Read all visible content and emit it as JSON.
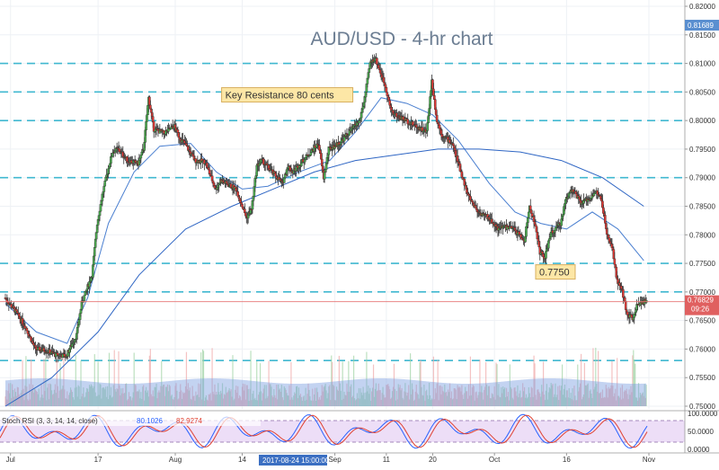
{
  "chart_data": {
    "type": "candlestick",
    "title": "AUD/USD - 4-hr chart",
    "instrument": "AUD/USD",
    "timeframe": "4-hr",
    "ylim": [
      0.75,
      0.82
    ],
    "y_ticks": [
      "0.82000",
      "0.81500",
      "0.81000",
      "0.80500",
      "0.80000",
      "0.79500",
      "0.79000",
      "0.78500",
      "0.78000",
      "0.77500",
      "0.77000",
      "0.76500",
      "0.76000",
      "0.75500",
      "0.75000"
    ],
    "x_ticks": [
      "Jul",
      "17",
      "Aug",
      "14",
      "Sep",
      "11",
      "20",
      "Oct",
      "16",
      "Nov"
    ],
    "crosshair_date": "2017-08-24 15:00:00",
    "current_price": "0.76829",
    "countdown": "09:26",
    "top_price_label": "0.81689",
    "horizontal_levels": [
      0.81,
      0.805,
      0.8,
      0.79,
      0.775,
      0.77,
      0.758
    ],
    "current_price_value": 0.7683,
    "annotations": [
      {
        "text": "Key Resistance 80 cents",
        "x": "2017-08-10",
        "y": 0.8045
      },
      {
        "text": "0.7750",
        "x": "2017-10-10",
        "y": 0.7735
      }
    ],
    "price_path": [
      [
        "2017-06-29",
        0.769
      ],
      [
        "2017-07-01",
        0.7668
      ],
      [
        "2017-07-03",
        0.764
      ],
      [
        "2017-07-05",
        0.76
      ],
      [
        "2017-07-07",
        0.7598
      ],
      [
        "2017-07-09",
        0.759
      ],
      [
        "2017-07-11",
        0.7588
      ],
      [
        "2017-07-13",
        0.7625
      ],
      [
        "2017-07-14",
        0.768
      ],
      [
        "2017-07-16",
        0.773
      ],
      [
        "2017-07-17",
        0.782
      ],
      [
        "2017-07-18",
        0.787
      ],
      [
        "2017-07-19",
        0.791
      ],
      [
        "2017-07-20",
        0.7945
      ],
      [
        "2017-07-21",
        0.795
      ],
      [
        "2017-07-23",
        0.793
      ],
      [
        "2017-07-25",
        0.7925
      ],
      [
        "2017-07-26",
        0.795
      ],
      [
        "2017-07-27",
        0.804
      ],
      [
        "2017-07-28",
        0.7985
      ],
      [
        "2017-07-30",
        0.7978
      ],
      [
        "2017-08-01",
        0.799
      ],
      [
        "2017-08-02",
        0.797
      ],
      [
        "2017-08-03",
        0.796
      ],
      [
        "2017-08-05",
        0.793
      ],
      [
        "2017-08-07",
        0.7928
      ],
      [
        "2017-08-09",
        0.788
      ],
      [
        "2017-08-10",
        0.7895
      ],
      [
        "2017-08-11",
        0.789
      ],
      [
        "2017-08-13",
        0.788
      ],
      [
        "2017-08-15",
        0.783
      ],
      [
        "2017-08-16",
        0.7845
      ],
      [
        "2017-08-17",
        0.792
      ],
      [
        "2017-08-18",
        0.793
      ],
      [
        "2017-08-20",
        0.791
      ],
      [
        "2017-08-22",
        0.789
      ],
      [
        "2017-08-23",
        0.792
      ],
      [
        "2017-08-24",
        0.791
      ],
      [
        "2017-08-25",
        0.792
      ],
      [
        "2017-08-27",
        0.794
      ],
      [
        "2017-08-29",
        0.796
      ],
      [
        "2017-08-30",
        0.79
      ],
      [
        "2017-08-31",
        0.795
      ],
      [
        "2017-09-02",
        0.796
      ],
      [
        "2017-09-04",
        0.798
      ],
      [
        "2017-09-06",
        0.8
      ],
      [
        "2017-09-07",
        0.804
      ],
      [
        "2017-09-08",
        0.81
      ],
      [
        "2017-09-09",
        0.811
      ],
      [
        "2017-09-11",
        0.806
      ],
      [
        "2017-09-12",
        0.802
      ],
      [
        "2017-09-13",
        0.801
      ],
      [
        "2017-09-15",
        0.8
      ],
      [
        "2017-09-17",
        0.799
      ],
      [
        "2017-09-18",
        0.7985
      ],
      [
        "2017-09-19",
        0.798
      ],
      [
        "2017-09-20",
        0.807
      ],
      [
        "2017-09-21",
        0.8
      ],
      [
        "2017-09-22",
        0.7975
      ],
      [
        "2017-09-24",
        0.796
      ],
      [
        "2017-09-26",
        0.79
      ],
      [
        "2017-09-27",
        0.787
      ],
      [
        "2017-09-29",
        0.784
      ],
      [
        "2017-10-01",
        0.783
      ],
      [
        "2017-10-03",
        0.781
      ],
      [
        "2017-10-04",
        0.7815
      ],
      [
        "2017-10-06",
        0.781
      ],
      [
        "2017-10-08",
        0.779
      ],
      [
        "2017-10-09",
        0.785
      ],
      [
        "2017-10-10",
        0.782
      ],
      [
        "2017-10-11",
        0.777
      ],
      [
        "2017-10-12",
        0.776
      ],
      [
        "2017-10-13",
        0.78
      ],
      [
        "2017-10-15",
        0.782
      ],
      [
        "2017-10-16",
        0.786
      ],
      [
        "2017-10-17",
        0.788
      ],
      [
        "2017-10-18",
        0.787
      ],
      [
        "2017-10-19",
        0.7855
      ],
      [
        "2017-10-20",
        0.786
      ],
      [
        "2017-10-22",
        0.7875
      ],
      [
        "2017-10-23",
        0.786
      ],
      [
        "2017-10-24",
        0.78
      ],
      [
        "2017-10-25",
        0.778
      ],
      [
        "2017-10-26",
        0.772
      ],
      [
        "2017-10-27",
        0.77
      ],
      [
        "2017-10-28",
        0.766
      ],
      [
        "2017-10-29",
        0.7655
      ],
      [
        "2017-10-30",
        0.768
      ],
      [
        "2017-10-31",
        0.7683
      ]
    ],
    "moving_averages": [
      {
        "name": "short MA",
        "color": "#4a7fd0",
        "values": [
          [
            "2017-06-29",
            0.768
          ],
          [
            "2017-07-05",
            0.763
          ],
          [
            "2017-07-11",
            0.761
          ],
          [
            "2017-07-15",
            0.769
          ],
          [
            "2017-07-19",
            0.782
          ],
          [
            "2017-07-24",
            0.791
          ],
          [
            "2017-07-29",
            0.7955
          ],
          [
            "2017-08-04",
            0.796
          ],
          [
            "2017-08-09",
            0.791
          ],
          [
            "2017-08-14",
            0.788
          ],
          [
            "2017-08-19",
            0.7885
          ],
          [
            "2017-08-25",
            0.791
          ],
          [
            "2017-08-31",
            0.793
          ],
          [
            "2017-09-05",
            0.798
          ],
          [
            "2017-09-10",
            0.804
          ],
          [
            "2017-09-15",
            0.803
          ],
          [
            "2017-09-20",
            0.801
          ],
          [
            "2017-09-25",
            0.7965
          ],
          [
            "2017-10-01",
            0.789
          ],
          [
            "2017-10-06",
            0.784
          ],
          [
            "2017-10-11",
            0.782
          ],
          [
            "2017-10-16",
            0.781
          ],
          [
            "2017-10-21",
            0.784
          ],
          [
            "2017-10-26",
            0.781
          ],
          [
            "2017-10-31",
            0.7755
          ]
        ]
      },
      {
        "name": "long MA",
        "color": "#2f66c4",
        "values": [
          [
            "2017-06-29",
            0.75
          ],
          [
            "2017-07-08",
            0.755
          ],
          [
            "2017-07-17",
            0.763
          ],
          [
            "2017-07-25",
            0.773
          ],
          [
            "2017-08-03",
            0.781
          ],
          [
            "2017-08-12",
            0.785
          ],
          [
            "2017-08-20",
            0.788
          ],
          [
            "2017-08-28",
            0.791
          ],
          [
            "2017-09-05",
            0.793
          ],
          [
            "2017-09-13",
            0.794
          ],
          [
            "2017-09-21",
            0.795
          ],
          [
            "2017-09-29",
            0.795
          ],
          [
            "2017-10-07",
            0.7945
          ],
          [
            "2017-10-15",
            0.793
          ],
          [
            "2017-10-23",
            0.79
          ],
          [
            "2017-10-31",
            0.785
          ]
        ]
      }
    ],
    "volume_panel": {
      "note": "volume histogram shown beneath price"
    },
    "indicator": {
      "name": "Stoch RSI",
      "label": "Stoch RSI (3, 3, 14, 14, close)",
      "value_1": "80.1026",
      "value_2": "82.9274",
      "ylim": [
        0,
        100
      ],
      "y_ticks": [
        "100.0000",
        "50.0000",
        "0.0000"
      ],
      "upper_band": 80,
      "lower_band": 20,
      "colors": {
        "k": "#2962ff",
        "d": "#e04030",
        "band_fill": "#e8d6f5"
      }
    },
    "colors": {
      "up": "#4caf50",
      "down": "#e53935",
      "level_line": "#40b8d0",
      "current_price_line": "#e57373",
      "last_price_bg": "#e06060",
      "top_price_bg": "#5a8fd0",
      "annotation_bg": "#fde7a6",
      "annotation_border": "#d8b060"
    }
  }
}
